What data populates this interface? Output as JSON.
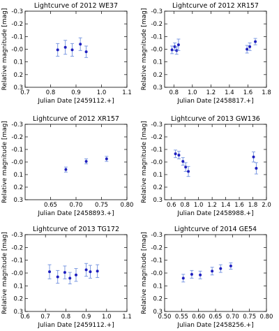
{
  "style": {
    "marker_color": "#1f1fbf",
    "error_color": "#6f8fdf",
    "frame_color": "#000000"
  },
  "chart_data": [
    {
      "type": "scatter",
      "title": "Lightcurve of 2012 WE37",
      "xlabel": "Julian Date [2459112.+]",
      "ylabel": "Relative magnitude [mag]",
      "xlim": [
        0.7,
        1.1
      ],
      "ylim": [
        -0.3,
        0.3
      ],
      "y_inverted": true,
      "xticks": [
        0.7,
        0.8,
        0.9,
        1.0,
        1.1
      ],
      "xtick_labels": [
        "0.7",
        "0.8",
        "0.9",
        "1.0",
        "1.1"
      ],
      "yticks": [
        -0.3,
        -0.2,
        -0.1,
        0.0,
        0.1,
        0.2,
        0.3
      ],
      "ytick_labels": [
        "-0.3",
        "-0.2",
        "-0.1",
        "-0.0",
        "0.1",
        "0.2",
        "0.3"
      ],
      "points": [
        {
          "x": 0.828,
          "y": 0.005,
          "err": 0.05
        },
        {
          "x": 0.858,
          "y": -0.015,
          "err": 0.055
        },
        {
          "x": 0.885,
          "y": 0.005,
          "err": 0.05
        },
        {
          "x": 0.917,
          "y": -0.04,
          "err": 0.05
        },
        {
          "x": 0.94,
          "y": 0.02,
          "err": 0.045
        }
      ]
    },
    {
      "type": "scatter",
      "title": "Lightcurve of 2012 XR157",
      "xlabel": "Julian Date [2458817.+]",
      "ylabel": "Relative magnitude [mag]",
      "xlim": [
        0.7,
        1.8
      ],
      "ylim": [
        -0.3,
        0.3
      ],
      "y_inverted": true,
      "xticks": [
        0.8,
        1.0,
        1.2,
        1.4,
        1.6,
        1.8
      ],
      "xtick_labels": [
        "0.8",
        "1.0",
        "1.2",
        "1.4",
        "1.6",
        "1.8"
      ],
      "yticks": [
        -0.3,
        -0.2,
        -0.1,
        0.0,
        0.1,
        0.2,
        0.3
      ],
      "ytick_labels": [
        "-0.3",
        "-0.2",
        "-0.1",
        "-0.0",
        "0.1",
        "0.2",
        "0.3"
      ],
      "points": [
        {
          "x": 0.78,
          "y": 0.005,
          "err": 0.03
        },
        {
          "x": 0.81,
          "y": -0.02,
          "err": 0.03
        },
        {
          "x": 0.83,
          "y": 0.01,
          "err": 0.03
        },
        {
          "x": 0.85,
          "y": -0.035,
          "err": 0.045
        },
        {
          "x": 1.59,
          "y": 0.0,
          "err": 0.03
        },
        {
          "x": 1.62,
          "y": -0.02,
          "err": 0.03
        },
        {
          "x": 1.68,
          "y": -0.06,
          "err": 0.025
        }
      ]
    },
    {
      "type": "scatter",
      "title": "Lightcurve of 2012 XR157",
      "xlabel": "Julian Date [2458893.+]",
      "ylabel": "Relative magnitude [mag]",
      "xlim": [
        0.6,
        0.8
      ],
      "ylim": [
        -0.3,
        0.3
      ],
      "y_inverted": true,
      "xticks": [
        0.65,
        0.7,
        0.75,
        0.8
      ],
      "xtick_labels": [
        "0.65",
        "0.70",
        "0.75",
        "0.80"
      ],
      "yticks": [
        -0.3,
        -0.2,
        -0.1,
        0.0,
        0.1,
        0.2,
        0.3
      ],
      "ytick_labels": [
        "-0.3",
        "-0.2",
        "-0.1",
        "-0.0",
        "0.1",
        "0.2",
        "0.3"
      ],
      "points": [
        {
          "x": 0.68,
          "y": 0.06,
          "err": 0.02
        },
        {
          "x": 0.72,
          "y": -0.005,
          "err": 0.02
        },
        {
          "x": 0.76,
          "y": -0.025,
          "err": 0.02
        }
      ]
    },
    {
      "type": "scatter",
      "title": "Lightcurve of 2013 GW136",
      "xlabel": "Julian Date [2458988.+]",
      "ylabel": "Relative magnitude [mag]",
      "xlim": [
        0.5,
        2.0
      ],
      "ylim": [
        -0.3,
        0.3
      ],
      "y_inverted": true,
      "xticks": [
        0.6,
        0.8,
        1.0,
        1.2,
        1.4,
        1.6,
        1.8,
        2.0
      ],
      "xtick_labels": [
        "0.6",
        "0.8",
        "1.0",
        "1.2",
        "1.4",
        "1.6",
        "1.8",
        "2.0"
      ],
      "yticks": [
        -0.3,
        -0.2,
        -0.1,
        0.0,
        0.1,
        0.2,
        0.3
      ],
      "ytick_labels": [
        "-0.3",
        "-0.2",
        "-0.1",
        "-0.0",
        "0.1",
        "0.2",
        "0.3"
      ],
      "points": [
        {
          "x": 0.66,
          "y": -0.065,
          "err": 0.03
        },
        {
          "x": 0.71,
          "y": -0.055,
          "err": 0.03
        },
        {
          "x": 0.77,
          "y": -0.005,
          "err": 0.03
        },
        {
          "x": 0.81,
          "y": 0.04,
          "err": 0.035
        },
        {
          "x": 0.85,
          "y": 0.075,
          "err": 0.04
        },
        {
          "x": 1.81,
          "y": -0.04,
          "err": 0.04
        },
        {
          "x": 1.85,
          "y": 0.05,
          "err": 0.045
        }
      ]
    },
    {
      "type": "scatter",
      "title": "Lightcurve of 2013 TG172",
      "xlabel": "Julian Date [2459112.+]",
      "ylabel": "Relative magnitude [mag]",
      "xlim": [
        0.6,
        1.1
      ],
      "ylim": [
        -0.3,
        0.3
      ],
      "y_inverted": true,
      "xticks": [
        0.6,
        0.7,
        0.8,
        0.9,
        1.0,
        1.1
      ],
      "xtick_labels": [
        "0.6",
        "0.7",
        "0.8",
        "0.9",
        "1.0",
        "1.1"
      ],
      "yticks": [
        -0.3,
        -0.2,
        -0.1,
        0.0,
        0.1,
        0.2,
        0.3
      ],
      "ytick_labels": [
        "-0.3",
        "-0.2",
        "-0.1",
        "-0.0",
        "0.1",
        "0.2",
        "0.3"
      ],
      "points": [
        {
          "x": 0.72,
          "y": -0.01,
          "err": 0.055
        },
        {
          "x": 0.76,
          "y": 0.03,
          "err": 0.05
        },
        {
          "x": 0.795,
          "y": -0.005,
          "err": 0.05
        },
        {
          "x": 0.82,
          "y": 0.04,
          "err": 0.045
        },
        {
          "x": 0.85,
          "y": 0.015,
          "err": 0.05
        },
        {
          "x": 0.9,
          "y": -0.025,
          "err": 0.05
        },
        {
          "x": 0.92,
          "y": -0.01,
          "err": 0.05
        },
        {
          "x": 0.955,
          "y": -0.015,
          "err": 0.05
        }
      ]
    },
    {
      "type": "scatter",
      "title": "Lightcurve of 2014 GE54",
      "xlabel": "Julian Date [2458256.+]",
      "ylabel": "Relative magnitude [mag]",
      "xlim": [
        0.5,
        0.8
      ],
      "ylim": [
        -0.3,
        0.3
      ],
      "y_inverted": true,
      "xticks": [
        0.5,
        0.55,
        0.6,
        0.65,
        0.7,
        0.75,
        0.8
      ],
      "xtick_labels": [
        "0.50",
        "0.55",
        "0.60",
        "0.65",
        "0.70",
        "0.75",
        "0.80"
      ],
      "yticks": [
        -0.3,
        -0.2,
        -0.1,
        0.0,
        0.1,
        0.2,
        0.3
      ],
      "ytick_labels": [
        "-0.3",
        "-0.2",
        "-0.1",
        "-0.0",
        "0.1",
        "0.2",
        "0.3"
      ],
      "points": [
        {
          "x": 0.555,
          "y": 0.04,
          "err": 0.03
        },
        {
          "x": 0.58,
          "y": 0.01,
          "err": 0.03
        },
        {
          "x": 0.605,
          "y": 0.015,
          "err": 0.03
        },
        {
          "x": 0.64,
          "y": -0.015,
          "err": 0.03
        },
        {
          "x": 0.665,
          "y": -0.035,
          "err": 0.03
        },
        {
          "x": 0.695,
          "y": -0.055,
          "err": 0.025
        }
      ]
    }
  ]
}
